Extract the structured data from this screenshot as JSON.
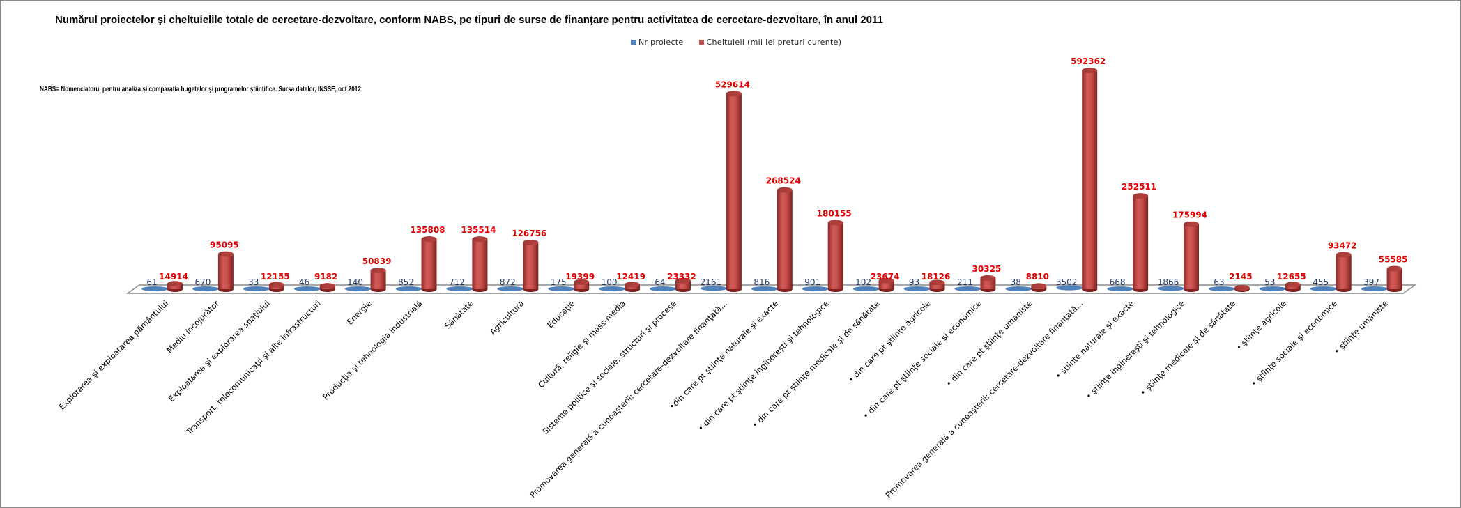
{
  "chart_data": {
    "type": "bar",
    "style": "3d-cylinder-clustered",
    "title": "Numărul proiectelor şi cheltuielile totale de cercetare-dezvoltare, conform NABS, pe tipuri de surse de finanţare pentru activitatea de cercetare-dezvoltare, în anul 2011",
    "note": "NABS= Nomenclatorul pentru analiza şi comparaţia bugetelor şi programelor ştiinţifice. Sursa datelor, INSSE, oct 2012",
    "xlabel": "",
    "ylabel": "",
    "grid": false,
    "legend_position": "top-center",
    "ylim": [
      0,
      600000
    ],
    "categories": [
      "Explorarea şi exploatarea pământului",
      "Mediu încojurător",
      "Exploatarea şi explorarea spaţiului",
      "Transport, telecomunicaţii şi alte infrastructuri",
      "Energie",
      "Producţia şi tehnologia industrială",
      "Sănătate",
      "Agricultură",
      "Educaţie",
      "Cultură,  religie şi mass-media",
      "Sisteme politice şi sociale, structuri şi procese",
      "Promovarea generală a cunoaşterii: cercetare-dezvoltare finanţată...",
      "•din care pt ştiinţe naturale şi exacte",
      "• din care pt ştiinţe inginereşti şi tehnologice",
      "• din care pt ştiinţe medicale şi de sănătate",
      "• din care pt ştiinţe agricole",
      "• din care pt ştiinţe sociale şi economice",
      "• din care pt ştiinţe umaniste",
      "Promovarea generală a cunoaşterii: cercetare-dezvoltare finanţată...",
      "• ştiinţe naturale şi exacte",
      "• ştiinţe inginereşti şi tehnologice",
      "• ştiinţe medicale şi de sănătate",
      "• ştiinţe agricole",
      "• ştiinţe sociale şi economice",
      "• ştiinţe umaniste"
    ],
    "series": [
      {
        "name": "Nr proiecte",
        "color": "#4f81bd",
        "label_color": "#1f3864",
        "values": [
          61,
          670,
          33,
          46,
          140,
          852,
          712,
          872,
          175,
          100,
          64,
          2161,
          816,
          901,
          102,
          93,
          211,
          38,
          3502,
          668,
          1866,
          63,
          53,
          455,
          397
        ]
      },
      {
        "name": "Cheltuieli (mii lei preturi curente)",
        "color": "#c0504d",
        "label_color": "#e00000",
        "values": [
          14914,
          95095,
          12155,
          9182,
          50839,
          135808,
          135514,
          126756,
          19399,
          12419,
          23332,
          529614,
          268524,
          180155,
          23674,
          18126,
          30325,
          8810,
          592362,
          252511,
          175994,
          2145,
          12655,
          93472,
          55585
        ]
      }
    ]
  }
}
